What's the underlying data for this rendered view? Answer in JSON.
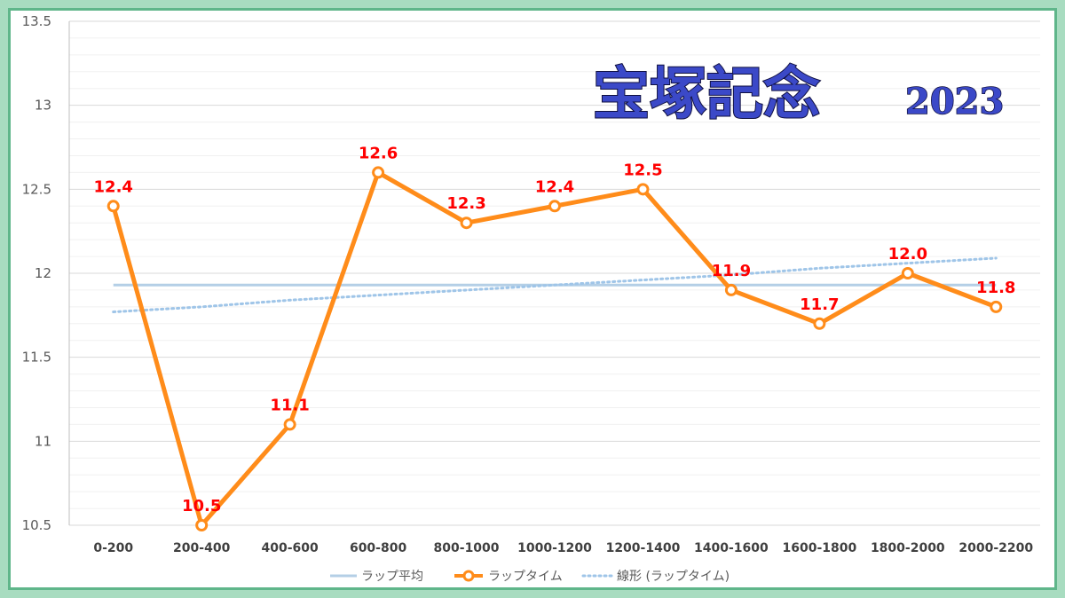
{
  "title": {
    "main": "宝塚記念",
    "year": "2023"
  },
  "colors": {
    "lap": "#ff8c1a",
    "average": "#b4cfe6",
    "trend": "#9fc5e8",
    "labels": "#ff0000",
    "frame": "#a8dcc0"
  },
  "chart_data": {
    "type": "line",
    "categories": [
      "0-200",
      "200-400",
      "400-600",
      "600-800",
      "800-1000",
      "1000-1200",
      "1200-1400",
      "1400-1600",
      "1600-1800",
      "1800-2000",
      "2000-2200"
    ],
    "ylim": [
      10.5,
      13.5
    ],
    "yticks": [
      "10.5",
      "11",
      "11.5",
      "12",
      "12.5",
      "13",
      "13.5"
    ],
    "grid": true,
    "legend_placement": "bottom",
    "series": [
      {
        "name": "ラップタイム",
        "values": [
          12.4,
          10.5,
          11.1,
          12.6,
          12.3,
          12.4,
          12.5,
          11.9,
          11.7,
          12.0,
          11.8
        ],
        "labels": [
          "12.4",
          "10.5",
          "11.1",
          "12.6",
          "12.3",
          "12.4",
          "12.5",
          "11.9",
          "11.7",
          "12.0",
          "11.8"
        ]
      },
      {
        "name": "ラップ平均",
        "values": [
          11.93,
          11.93,
          11.93,
          11.93,
          11.93,
          11.93,
          11.93,
          11.93,
          11.93,
          11.93,
          11.93
        ]
      },
      {
        "name": "線形 (ラップタイム)",
        "values": [
          11.77,
          11.8,
          11.84,
          11.87,
          11.9,
          11.93,
          11.96,
          11.99,
          12.03,
          12.06,
          12.09
        ]
      }
    ]
  }
}
